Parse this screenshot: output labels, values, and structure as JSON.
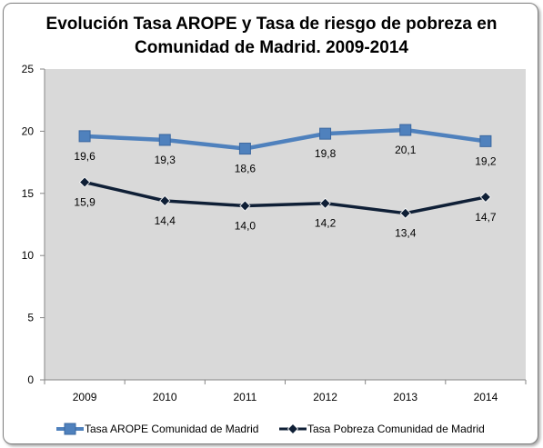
{
  "chart_data": {
    "type": "line",
    "title_line1": "Evolución Tasa AROPE y Tasa de riesgo de pobreza en",
    "title_line2": "Comunidad de Madrid. 2009-2014",
    "xlabel": "",
    "ylabel": "",
    "categories": [
      "2009",
      "2010",
      "2011",
      "2012",
      "2013",
      "2014"
    ],
    "ylim": [
      0,
      25
    ],
    "yticks": [
      0,
      5,
      10,
      15,
      20,
      25
    ],
    "grid": false,
    "legend_position": "bottom",
    "series": [
      {
        "name": "Tasa AROPE Comunidad de Madrid",
        "values": [
          19.6,
          19.3,
          18.6,
          19.8,
          20.1,
          19.2
        ],
        "labels": [
          "19,6",
          "19,3",
          "18,6",
          "19,8",
          "20,1",
          "19,2"
        ],
        "color": "#4f81bd",
        "marker": "square"
      },
      {
        "name": "Tasa Pobreza Comunidad de Madrid",
        "values": [
          15.9,
          14.4,
          14.0,
          14.2,
          13.4,
          14.7
        ],
        "labels": [
          "15,9",
          "14,4",
          "14,0",
          "14,2",
          "13,4",
          "14,7"
        ],
        "color": "#0f1f36",
        "marker": "diamond"
      }
    ],
    "plot_background": "#d9d9d9"
  }
}
